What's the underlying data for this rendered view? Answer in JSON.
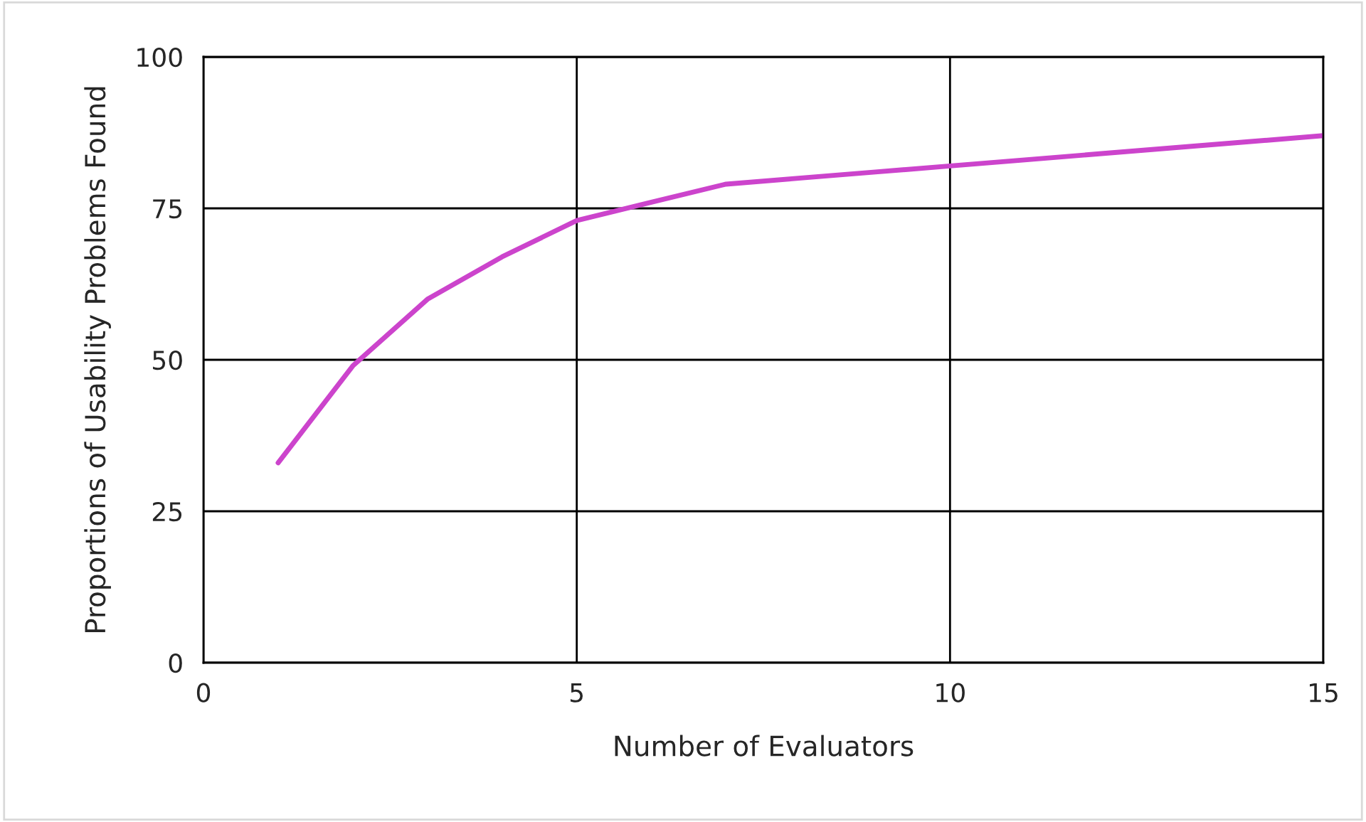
{
  "chart_data": {
    "type": "line",
    "xlabel": "Number of Evaluators",
    "ylabel": "Proportions of Usability Problems Found",
    "x": [
      1,
      2,
      3,
      4,
      5,
      6,
      7,
      8,
      9,
      10,
      11,
      12,
      13,
      14,
      15
    ],
    "series": [
      {
        "color": "#cc44cc",
        "values": [
          33,
          49,
          60,
          67,
          73,
          76,
          79,
          80,
          81,
          82,
          83,
          84,
          85,
          86,
          87
        ]
      }
    ],
    "xlim": [
      0,
      15
    ],
    "xticks": [
      0,
      5,
      10,
      15
    ],
    "ylim": [
      0,
      100
    ],
    "yticks": [
      0,
      25,
      50,
      75,
      100
    ],
    "grid": true,
    "marker": "none",
    "line_style": "solid"
  }
}
